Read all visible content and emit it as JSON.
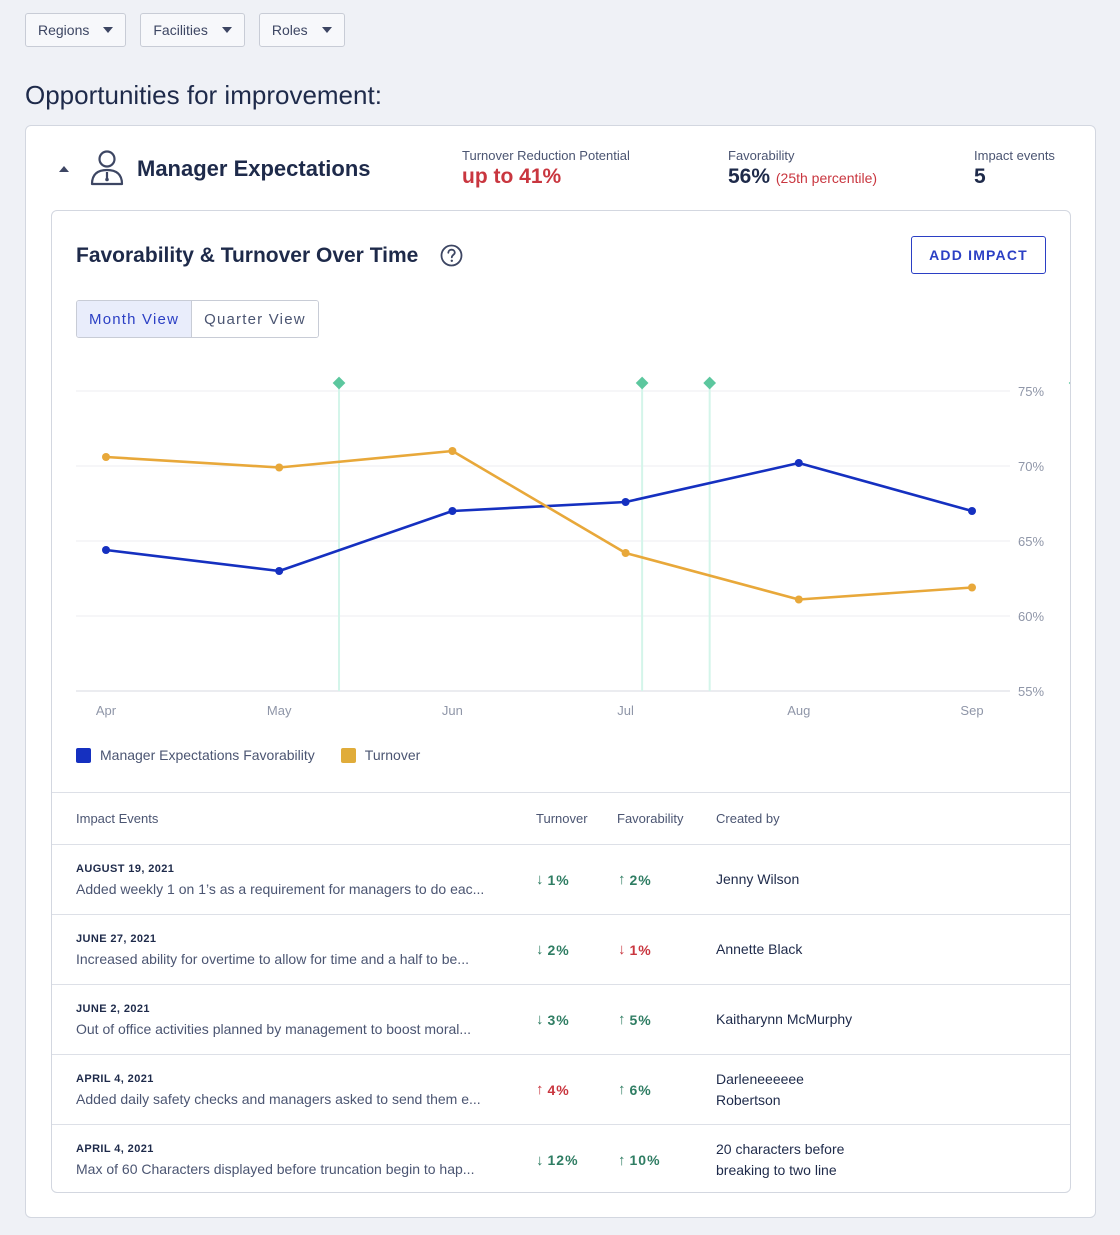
{
  "filters": [
    {
      "label": "Regions"
    },
    {
      "label": "Facilities"
    },
    {
      "label": "Roles"
    }
  ],
  "page_title": "Opportunities for improvement:",
  "section": {
    "title": "Manager Expectations",
    "icon": "person-icon",
    "stats": {
      "turnover_label": "Turnover Reduction Potential",
      "turnover_value": "up to 41%",
      "favorability_label": "Favorability",
      "favorability_value": "56%",
      "favorability_percentile": "(25th percentile)",
      "impact_label": "Impact events",
      "impact_value": "5"
    }
  },
  "chart_card": {
    "title": "Favorability & Turnover Over Time",
    "add_impact_label": "ADD IMPACT",
    "views": [
      "Month View",
      "Quarter View"
    ],
    "active_view": "Month View"
  },
  "chart_data": {
    "type": "line",
    "categories": [
      "Apr",
      "May",
      "Jun",
      "Jul",
      "Aug",
      "Sep"
    ],
    "y_ticks": [
      "75%",
      "70%",
      "65%",
      "60%",
      "55%"
    ],
    "ylim": [
      55,
      75
    ],
    "grid": true,
    "series": [
      {
        "name": "Manager Expectations Favorability",
        "color": "#1530c0",
        "values": [
          64.4,
          63.0,
          67.0,
          67.6,
          70.2,
          67.0
        ]
      },
      {
        "name": "Turnover",
        "color": "#e8a83a",
        "values": [
          70.6,
          69.9,
          71.0,
          64.2,
          61.1,
          61.9
        ]
      }
    ],
    "impact_event_markers_x": [
      1.38,
      3.13,
      3.52,
      5.63
    ],
    "legend": "bottom-left"
  },
  "legend": {
    "favorability": "Manager Expectations Favorability",
    "turnover": "Turnover"
  },
  "table": {
    "headers": {
      "event": "Impact Events",
      "turnover": "Turnover",
      "favorability": "Favorability",
      "created_by": "Created by"
    },
    "rows": [
      {
        "date": "AUGUST 19, 2021",
        "desc": "Added weekly 1 on 1’s as a requirement for managers to do eac...",
        "turnover": "1%",
        "turnover_dir": "down",
        "fav": "2%",
        "fav_dir": "up",
        "by": "Jenny Wilson"
      },
      {
        "date": "JUNE 27, 2021",
        "desc": "Increased ability for overtime to allow for time and a half to be...",
        "turnover": "2%",
        "turnover_dir": "down",
        "fav": "1%",
        "fav_dir": "down",
        "by": "Annette Black"
      },
      {
        "date": "JUNE 2, 2021",
        "desc": "Out of office activities planned by management to boost moral...",
        "turnover": "3%",
        "turnover_dir": "down",
        "fav": "5%",
        "fav_dir": "up",
        "by": "Kaitharynn McMurphy"
      },
      {
        "date": "APRIL 4, 2021",
        "desc": "Added daily safety checks and managers asked to send them e...",
        "turnover": "4%",
        "turnover_dir": "up",
        "fav": "6%",
        "fav_dir": "up",
        "by": "Darleneeeeee Robertson"
      },
      {
        "date": "APRIL 4, 2021",
        "desc": "Max of 60 Characters displayed before truncation begin to hap...",
        "turnover": "12%",
        "turnover_dir": "down",
        "fav": "10%",
        "fav_dir": "up",
        "by": "20 characters before breaking to two line"
      }
    ]
  },
  "colors": {
    "accent": "#2b3fc4",
    "good": "#2f7d63",
    "bad": "#c9363f",
    "favorability_line": "#1530c0",
    "turnover_line": "#e8a83a",
    "marker": "#5cc79e"
  }
}
